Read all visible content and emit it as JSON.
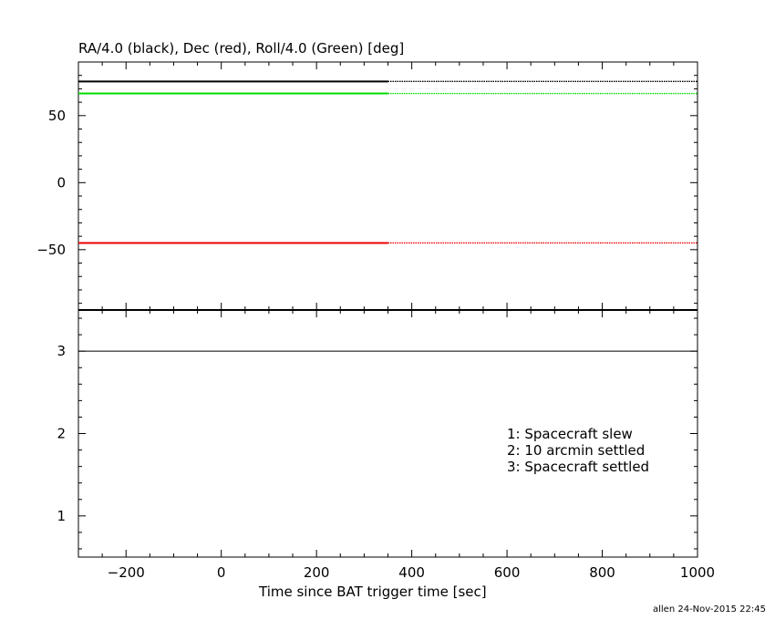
{
  "chart_data": [
    {
      "type": "line",
      "title": "RA/4.0 (black), Dec (red), Roll/4.0 (Green) [deg]",
      "xlim": [
        -300,
        1000
      ],
      "ylim": [
        -95,
        90
      ],
      "yticks": [
        50,
        0,
        -50
      ],
      "ytick_labels": [
        "50",
        "0",
        "−50"
      ],
      "series": [
        {
          "name": "RA/4.0",
          "color": "#000000",
          "x": [
            -300,
            350,
            1000
          ],
          "y": [
            75.5,
            75.5,
            75.5
          ],
          "solid_until": 350
        },
        {
          "name": "Roll/4.0",
          "color": "#00dd00",
          "x": [
            -300,
            350,
            1000
          ],
          "y": [
            66.5,
            66.5,
            66.5
          ],
          "solid_until": 350
        },
        {
          "name": "Dec",
          "color": "#ee0000",
          "x": [
            -300,
            350,
            1000
          ],
          "y": [
            -45.0,
            -45.0,
            -45.0
          ],
          "solid_until": 350
        }
      ]
    },
    {
      "type": "line",
      "xlabel": "Time since BAT trigger time [sec]",
      "xlim": [
        -300,
        1000
      ],
      "ylim": [
        0.5,
        3.5
      ],
      "yticks": [
        3,
        2,
        1
      ],
      "ytick_labels": [
        "3",
        "2",
        "1"
      ],
      "xticks": [
        -200,
        0,
        200,
        400,
        600,
        800,
        1000
      ],
      "xtick_labels": [
        "−200",
        "0",
        "200",
        "400",
        "600",
        "800",
        "1000"
      ],
      "series": [
        {
          "color": "#000000",
          "x": [
            -300,
            1000
          ],
          "y": [
            3,
            3
          ]
        }
      ],
      "legend_lines": [
        "1: Spacecraft slew",
        "2: 10 arcmin settled",
        "3: Spacecraft settled"
      ]
    }
  ],
  "footer": "allen 24-Nov-2015 22:45"
}
